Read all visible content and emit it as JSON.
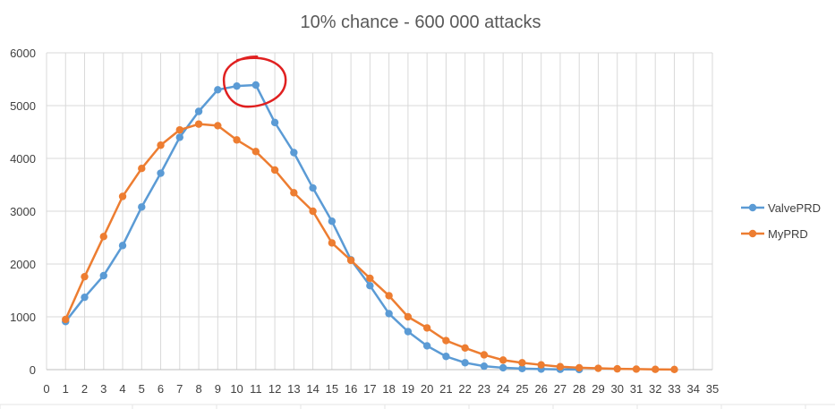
{
  "chart_data": {
    "type": "line",
    "title": "10% chance - 600 000 attacks",
    "xlabel": "",
    "ylabel": "",
    "xlim": [
      0,
      35
    ],
    "ylim": [
      0,
      6000
    ],
    "y_ticks": [
      0,
      1000,
      2000,
      3000,
      4000,
      5000,
      6000
    ],
    "x_ticks": [
      0,
      1,
      2,
      3,
      4,
      5,
      6,
      7,
      8,
      9,
      10,
      11,
      12,
      13,
      14,
      15,
      16,
      17,
      18,
      19,
      20,
      21,
      22,
      23,
      24,
      25,
      26,
      27,
      28,
      29,
      30,
      31,
      32,
      33,
      34,
      35
    ],
    "grid": true,
    "legend_position": "right",
    "series": [
      {
        "name": "ValvePRD",
        "color": "#5b9bd5",
        "x": [
          1,
          2,
          3,
          4,
          5,
          6,
          7,
          8,
          9,
          10,
          11,
          12,
          13,
          14,
          15,
          16,
          17,
          18,
          19,
          20,
          21,
          22,
          23,
          24,
          25,
          26,
          27,
          28
        ],
        "values": [
          910,
          1370,
          1780,
          2350,
          3080,
          3720,
          4400,
          4890,
          5300,
          5370,
          5390,
          4680,
          4110,
          3440,
          2810,
          2080,
          1590,
          1060,
          720,
          450,
          250,
          130,
          65,
          35,
          20,
          10,
          5,
          2
        ]
      },
      {
        "name": "MyPRD",
        "color": "#ed7d31",
        "x": [
          1,
          2,
          3,
          4,
          5,
          6,
          7,
          8,
          9,
          10,
          11,
          12,
          13,
          14,
          15,
          16,
          17,
          18,
          19,
          20,
          21,
          22,
          23,
          24,
          25,
          26,
          27,
          28,
          29,
          30,
          31,
          32,
          33
        ],
        "values": [
          950,
          1760,
          2520,
          3280,
          3810,
          4250,
          4540,
          4650,
          4620,
          4350,
          4130,
          3780,
          3350,
          3000,
          2400,
          2070,
          1730,
          1400,
          1000,
          790,
          550,
          410,
          280,
          180,
          130,
          90,
          55,
          35,
          25,
          15,
          10,
          5,
          3
        ]
      }
    ],
    "annotation": {
      "shape": "hand-drawn-circle",
      "color": "#e02020",
      "around_x": [
        10,
        11
      ]
    }
  }
}
